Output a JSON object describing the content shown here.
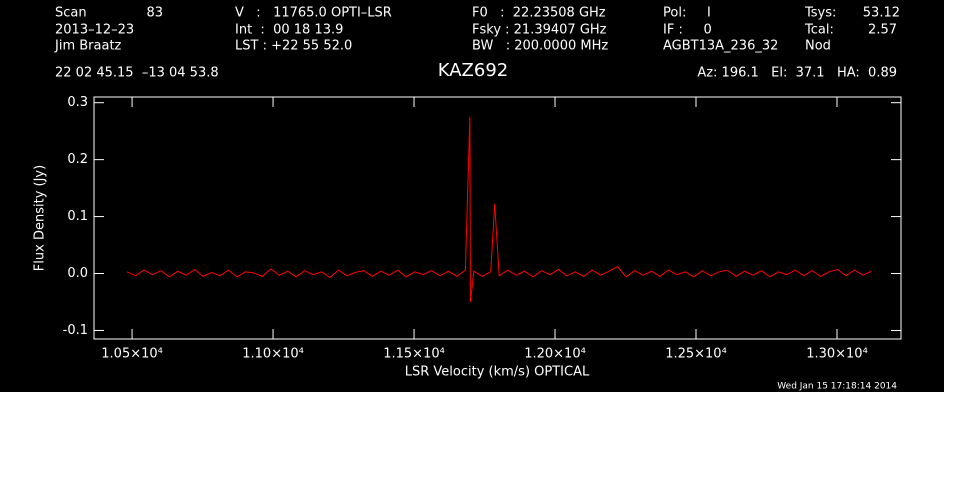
{
  "chart_data": {
    "type": "line",
    "title": "KAZ692",
    "header": {
      "scan_label": "Scan",
      "scan": "83",
      "date": "2013–12–23",
      "observer": "Jim Braatz",
      "v": "V   :   11765.0 OPTI–LSR",
      "int": "Int  :  00 18 13.9",
      "lst": "LST : +22 55 52.0",
      "f0": "F0   :  22.23508 GHz",
      "fsky": "Fsky : 21.39407 GHz",
      "bw": "BW   : 200.0000 MHz",
      "pol": "Pol:     I",
      "if": "IF :     0",
      "project": "AGBT13A_236_32",
      "tsys_label": "Tsys:",
      "tsys": "53.12",
      "tcal_label": "Tcal:",
      "tcal": "2.57",
      "mode": "Nod",
      "coords": "22 02 45.15  –13 04 53.8",
      "azelha": "Az: 196.1   El:  37.1   HA:  0.89",
      "timestamp": "Wed Jan 15 17:18:14 2014"
    },
    "x_label": "LSR Velocity (km/s) OPTICAL",
    "y_label": "Flux Density (Jy)",
    "x": [
      10482,
      10512,
      10542,
      10572,
      10602,
      10632,
      10662,
      10692,
      10722,
      10752,
      10782,
      10812,
      10842,
      10872,
      10902,
      10932,
      10962,
      10992,
      11022,
      11052,
      11082,
      11112,
      11142,
      11172,
      11202,
      11232,
      11262,
      11292,
      11322,
      11352,
      11382,
      11412,
      11442,
      11472,
      11502,
      11532,
      11562,
      11592,
      11622,
      11652,
      11682,
      11698,
      11700,
      11712,
      11742,
      11772,
      11786,
      11802,
      11832,
      11862,
      11892,
      11922,
      11952,
      11982,
      12012,
      12042,
      12072,
      12102,
      12132,
      12162,
      12192,
      12222,
      12252,
      12282,
      12312,
      12342,
      12372,
      12402,
      12432,
      12462,
      12492,
      12522,
      12552,
      12582,
      12612,
      12642,
      12672,
      12702,
      12732,
      12762,
      12792,
      12822,
      12852,
      12882,
      12912,
      12942,
      12972,
      13002,
      13032,
      13062,
      13092,
      13122
    ],
    "series": [
      {
        "name": "KAZ692",
        "color": "#ff0000",
        "values": [
          0.003,
          -0.004,
          0.006,
          -0.002,
          0.005,
          -0.006,
          0.004,
          -0.003,
          0.007,
          -0.005,
          0.002,
          -0.004,
          0.006,
          -0.006,
          0.003,
          0.001,
          -0.005,
          0.008,
          -0.003,
          0.004,
          -0.006,
          0.005,
          -0.002,
          0.003,
          -0.007,
          0.006,
          -0.004,
          0.002,
          0.005,
          -0.005,
          0.004,
          -0.003,
          0.006,
          -0.006,
          0.003,
          -0.002,
          0.005,
          -0.004,
          0.004,
          -0.005,
          0.006,
          0.275,
          -0.05,
          0.004,
          -0.005,
          0.003,
          0.122,
          -0.004,
          0.006,
          -0.003,
          0.004,
          -0.006,
          0.005,
          -0.002,
          0.007,
          -0.004,
          0.003,
          -0.005,
          0.006,
          -0.003,
          0.004,
          0.012,
          -0.006,
          0.005,
          -0.003,
          0.004,
          -0.005,
          0.006,
          -0.002,
          0.003,
          -0.006,
          0.005,
          -0.004,
          0.003,
          0.006,
          -0.005,
          0.004,
          -0.003,
          0.005,
          -0.006,
          0.003,
          -0.002,
          0.006,
          -0.004,
          0.005,
          -0.005,
          0.003,
          0.007,
          -0.004,
          0.006,
          -0.003,
          0.004
        ]
      }
    ],
    "xlim": [
      10365,
      13227
    ],
    "ylim": [
      -0.115,
      0.31
    ],
    "xticks": [
      {
        "value": 10500,
        "label": "1.05×10⁴"
      },
      {
        "value": 11000,
        "label": "1.10×10⁴"
      },
      {
        "value": 11500,
        "label": "1.15×10⁴"
      },
      {
        "value": 12000,
        "label": "1.20×10⁴"
      },
      {
        "value": 12500,
        "label": "1.25×10⁴"
      },
      {
        "value": 13000,
        "label": "1.30×10⁴"
      }
    ],
    "yticks": [
      -0.1,
      {
        "value": 0,
        "label": "0.0"
      },
      0.1,
      0.2,
      0.3
    ],
    "grid": false
  }
}
